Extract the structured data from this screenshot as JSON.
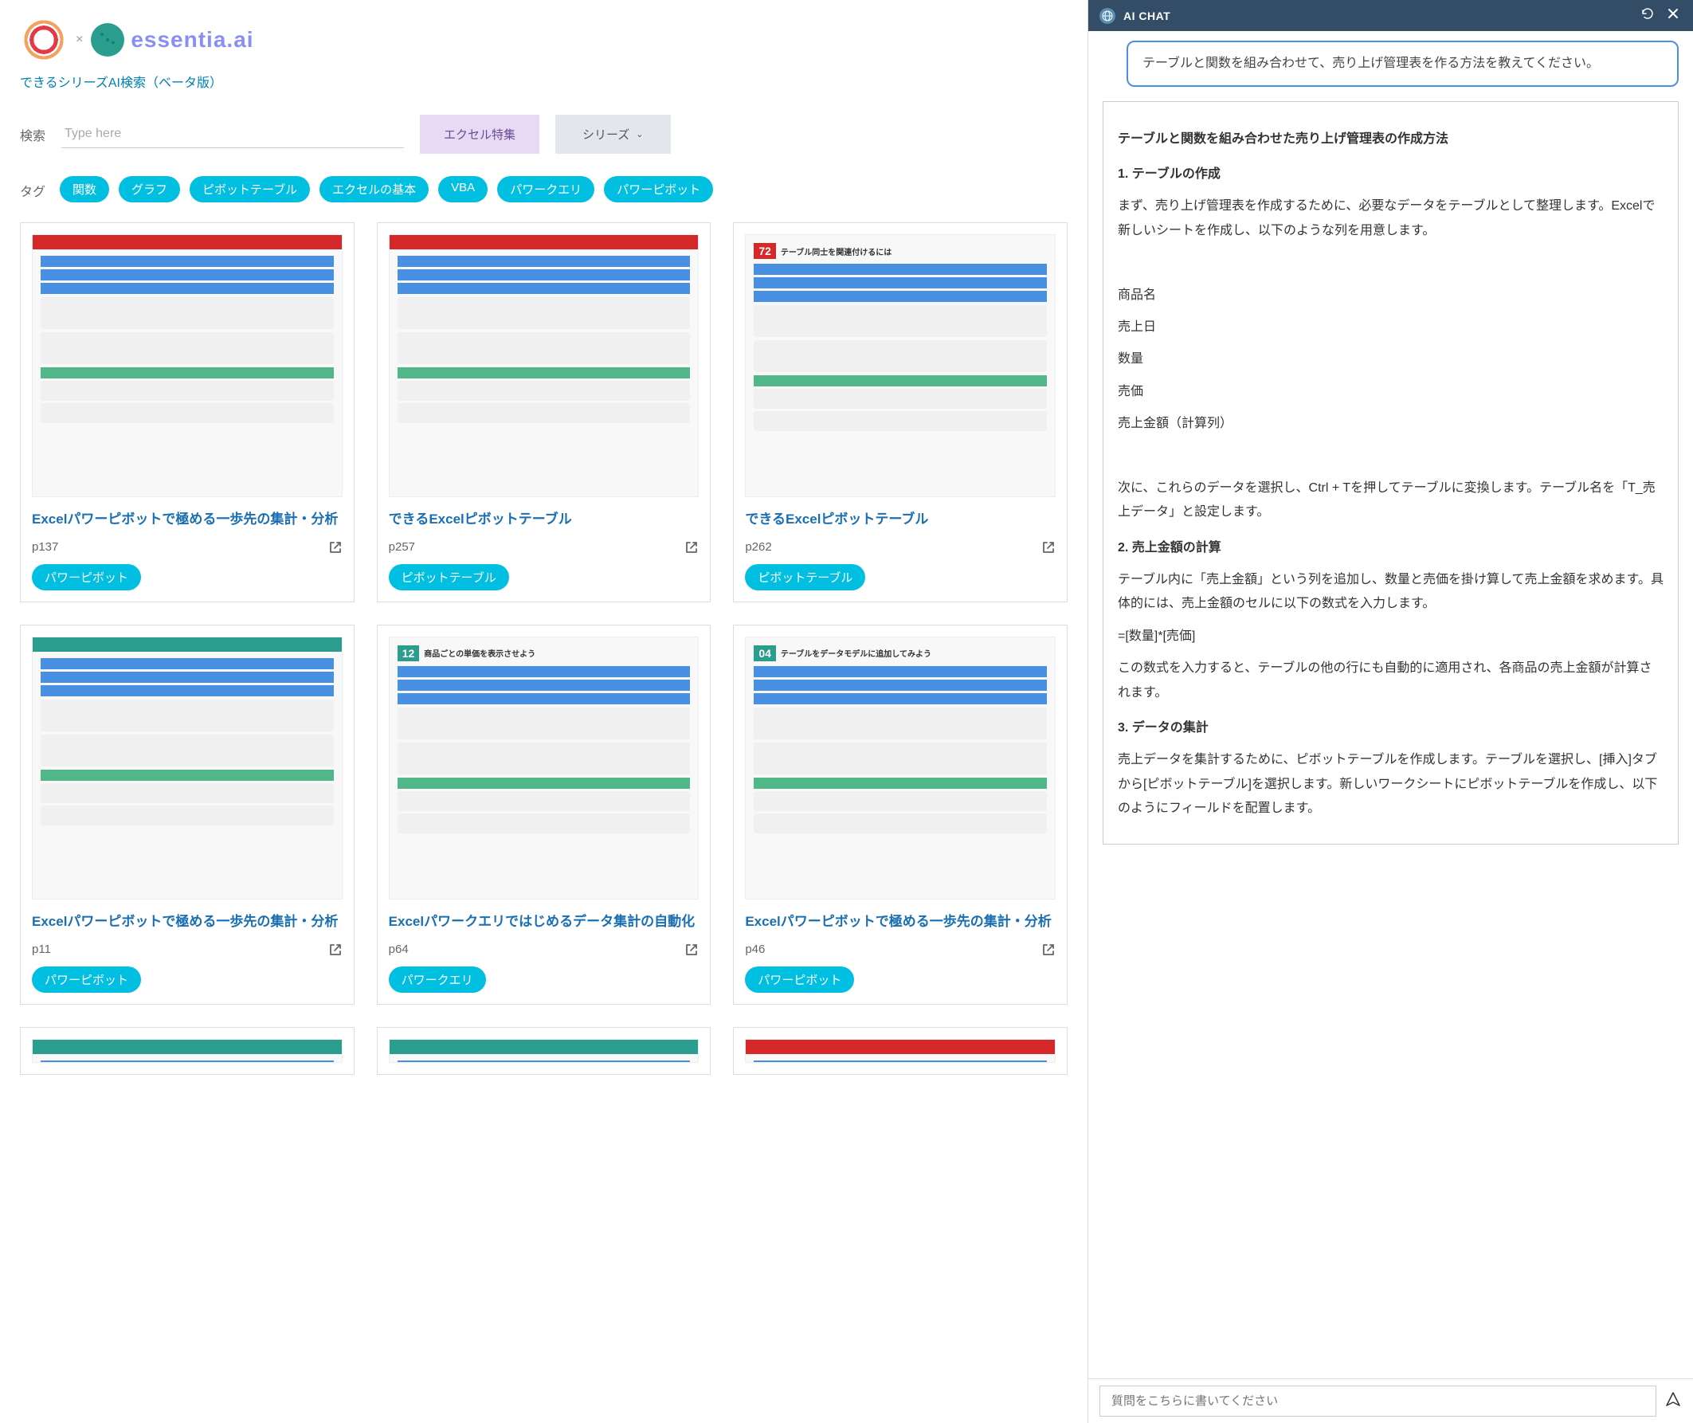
{
  "brand": {
    "logo_text": "essentia.ai",
    "subtitle": "できるシリーズAI検索（ベータ版）"
  },
  "search": {
    "label": "検索",
    "placeholder": "Type here",
    "btn_excel": "エクセル特集",
    "btn_series": "シリーズ"
  },
  "tags": {
    "label": "タグ",
    "items": [
      "関数",
      "グラフ",
      "ピボットテーブル",
      "エクセルの基本",
      "VBA",
      "パワークエリ",
      "パワーピボット"
    ]
  },
  "cards": [
    {
      "title": "Excelパワーピボットで極める一歩先の集計・分析",
      "page": "p137",
      "tag": "パワーピボット",
      "thumb_type": "red",
      "thumb_num": "",
      "thumb_title": ""
    },
    {
      "title": "できるExcelピボットテーブル",
      "page": "p257",
      "tag": "ピボットテーブル",
      "thumb_type": "red",
      "thumb_num": "",
      "thumb_title": ""
    },
    {
      "title": "できるExcelピボットテーブル",
      "page": "p262",
      "tag": "ピボットテーブル",
      "thumb_type": "red",
      "thumb_num": "72",
      "thumb_title": "テーブル同士を関連付けるには"
    },
    {
      "title": "Excelパワーピボットで極める一歩先の集計・分析",
      "page": "p11",
      "tag": "パワーピボット",
      "thumb_type": "green",
      "thumb_num": "",
      "thumb_title": ""
    },
    {
      "title": "Excelパワークエリではじめるデータ集計の自動化",
      "page": "p64",
      "tag": "パワークエリ",
      "thumb_type": "green",
      "thumb_num": "12",
      "thumb_title": "商品ごとの単価を表示させよう"
    },
    {
      "title": "Excelパワーピボットで極める一歩先の集計・分析",
      "page": "p46",
      "tag": "パワーピボット",
      "thumb_type": "green",
      "thumb_num": "04",
      "thumb_title": "テーブルをデータモデルに追加してみよう"
    }
  ],
  "chat": {
    "title": "AI CHAT",
    "user_message": "テーブルと関数を組み合わせて、売り上げ管理表を作る方法を教えてください。",
    "response": {
      "heading": "テーブルと関数を組み合わせた売り上げ管理表の作成方法",
      "s1_title": "1. テーブルの作成",
      "s1_p1": "まず、売り上げ管理表を作成するために、必要なデータをテーブルとして整理します。Excelで新しいシートを作成し、以下のような列を用意します。",
      "col1": "商品名",
      "col2": "売上日",
      "col3": "数量",
      "col4": "売価",
      "col5": "売上金額（計算列）",
      "s1_p2": "次に、これらのデータを選択し、Ctrl + Tを押してテーブルに変換します。テーブル名を「T_売上データ」と設定します。",
      "s2_title": "2. 売上金額の計算",
      "s2_p1": "テーブル内に「売上金額」という列を追加し、数量と売価を掛け算して売上金額を求めます。具体的には、売上金額のセルに以下の数式を入力します。",
      "s2_formula": "=[数量]*[売価]",
      "s2_p2": "この数式を入力すると、テーブルの他の行にも自動的に適用され、各商品の売上金額が計算されます。",
      "s3_title": "3. データの集計",
      "s3_p1": "売上データを集計するために、ピボットテーブルを作成します。テーブルを選択し、[挿入]タブから[ピボットテーブル]を選択します。新しいワークシートにピボットテーブルを作成し、以下のようにフィールドを配置します。"
    },
    "input_placeholder": "質問をこちらに書いてください"
  },
  "colors": {
    "tag_bg": "#00bfe0",
    "link_blue": "#1a6fb3",
    "chat_header": "#334d66",
    "bubble_border": "#4a90e2"
  }
}
